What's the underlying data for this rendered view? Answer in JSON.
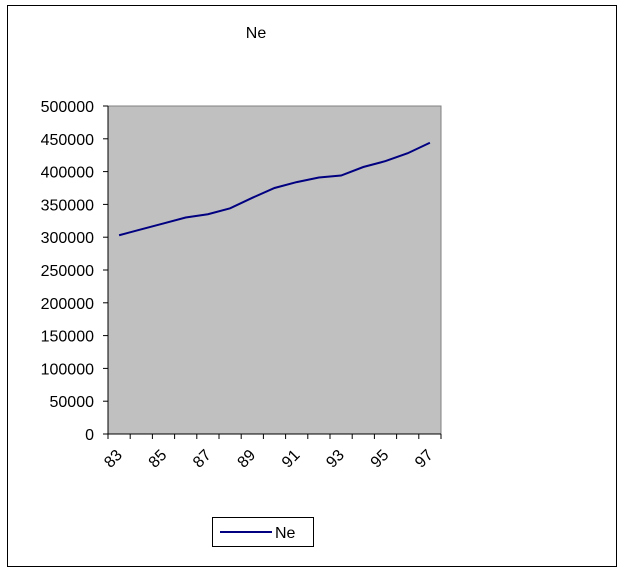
{
  "chart_data": {
    "type": "line",
    "title": "Ne",
    "categories": [
      "83",
      null,
      "85",
      null,
      "87",
      null,
      "89",
      null,
      "91",
      null,
      "93",
      null,
      "95",
      null,
      "97"
    ],
    "series": [
      {
        "name": "Ne",
        "color": "#000080",
        "values": [
          303000,
          312000,
          321000,
          330000,
          335000,
          344000,
          360000,
          375000,
          384000,
          391000,
          394000,
          407000,
          416000,
          428000,
          444000
        ]
      }
    ],
    "ylim": [
      0,
      500000
    ],
    "yticks": [
      0,
      50000,
      100000,
      150000,
      200000,
      250000,
      300000,
      350000,
      400000,
      450000,
      500000
    ],
    "plot_background": "#c0c0c0",
    "legend": "bottom"
  }
}
